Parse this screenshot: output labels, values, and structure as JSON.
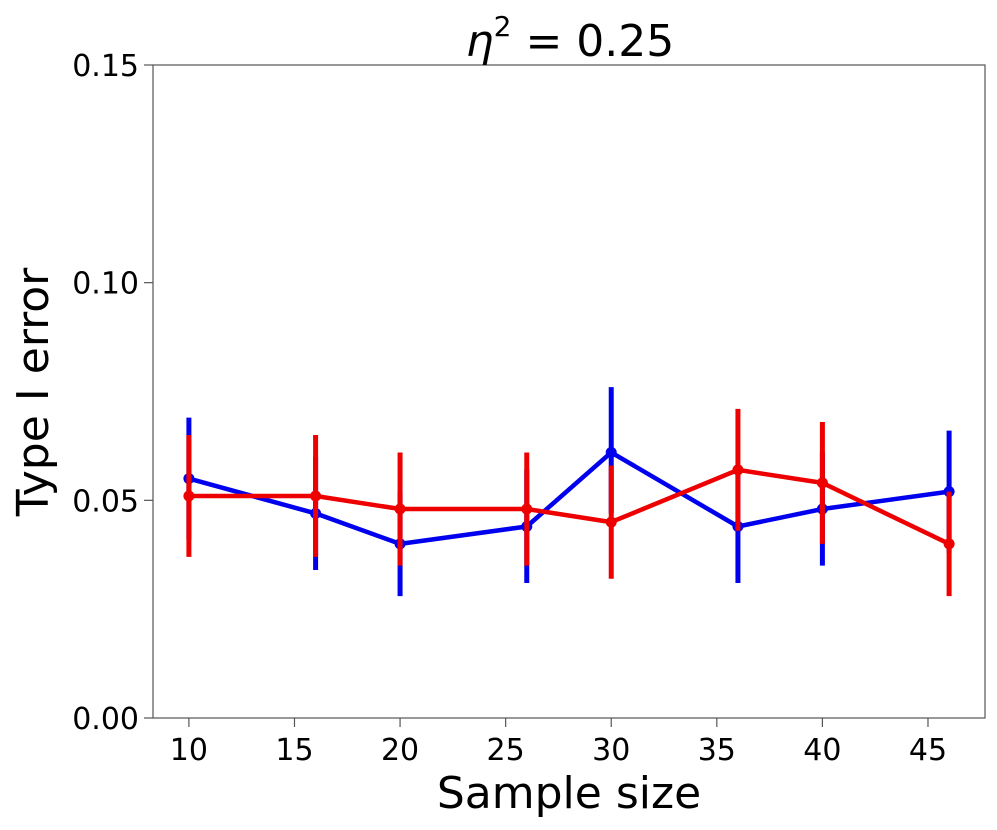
{
  "chart_data": {
    "type": "line",
    "title": "η² = 0.25",
    "title_parts": {
      "symbol": "η",
      "exponent": "2",
      "rest": " = 0.25"
    },
    "xlabel": "Sample size",
    "ylabel": "Type I error",
    "xlim": [
      8.3,
      47.7
    ],
    "ylim": [
      0.0,
      0.15
    ],
    "xticks": [
      10,
      15,
      20,
      25,
      30,
      35,
      40,
      45
    ],
    "yticks": [
      0.0,
      0.05,
      0.1,
      0.15
    ],
    "ytick_labels": [
      "0.00",
      "0.05",
      "0.10",
      "0.15"
    ],
    "grid": false,
    "legend": "none",
    "x": [
      10,
      16,
      20,
      26,
      30,
      36,
      40,
      46
    ],
    "series": [
      {
        "name": "blue series",
        "color": "#0000ee",
        "values": [
          0.055,
          0.047,
          0.04,
          0.044,
          0.061,
          0.044,
          0.048,
          0.052
        ],
        "err_low": [
          0.041,
          0.034,
          0.028,
          0.031,
          0.047,
          0.031,
          0.035,
          0.038
        ],
        "err_high": [
          0.069,
          0.06,
          0.052,
          0.057,
          0.076,
          0.057,
          0.061,
          0.066
        ]
      },
      {
        "name": "red series",
        "color": "#ee0000",
        "values": [
          0.051,
          0.051,
          0.048,
          0.048,
          0.045,
          0.057,
          0.054,
          0.04
        ],
        "err_low": [
          0.037,
          0.037,
          0.035,
          0.035,
          0.032,
          0.043,
          0.04,
          0.028
        ],
        "err_high": [
          0.065,
          0.065,
          0.061,
          0.061,
          0.058,
          0.071,
          0.068,
          0.052
        ]
      }
    ]
  }
}
